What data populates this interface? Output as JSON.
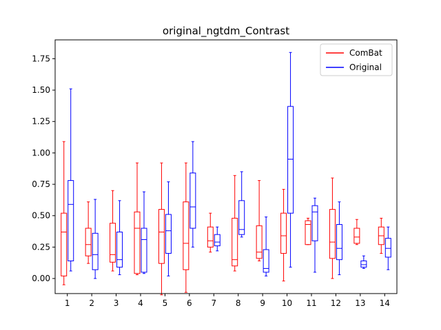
{
  "chart_data": {
    "type": "boxplot",
    "title": "original_ngtdm_Contrast",
    "xlabel": "",
    "ylabel": "",
    "categories": [
      "1",
      "2",
      "3",
      "4",
      "5",
      "6",
      "7",
      "8",
      "9",
      "10",
      "11",
      "12",
      "13",
      "14"
    ],
    "yticks": [
      "0.00",
      "0.25",
      "0.50",
      "0.75",
      "1.00",
      "1.25",
      "1.50",
      "1.75"
    ],
    "ylim": [
      -0.12,
      1.9
    ],
    "grid": false,
    "legend": {
      "placement": "top-right"
    },
    "series": [
      {
        "name": "ComBat",
        "color": "#ff0000",
        "boxes": [
          {
            "whislo": -0.05,
            "q1": 0.02,
            "med": 0.37,
            "q3": 0.52,
            "whishi": 1.09
          },
          {
            "whislo": 0.12,
            "q1": 0.18,
            "med": 0.27,
            "q3": 0.4,
            "whishi": 0.61
          },
          {
            "whislo": 0.06,
            "q1": 0.13,
            "med": 0.19,
            "q3": 0.44,
            "whishi": 0.7
          },
          {
            "whislo": 0.03,
            "q1": 0.04,
            "med": 0.4,
            "q3": 0.53,
            "whishi": 0.92
          },
          {
            "whislo": -0.13,
            "q1": 0.12,
            "med": 0.37,
            "q3": 0.55,
            "whishi": 0.92
          },
          {
            "whislo": -0.11,
            "q1": 0.07,
            "med": 0.28,
            "q3": 0.61,
            "whishi": 0.92
          },
          {
            "whislo": 0.21,
            "q1": 0.25,
            "med": 0.3,
            "q3": 0.41,
            "whishi": 0.52
          },
          {
            "whislo": 0.06,
            "q1": 0.1,
            "med": 0.15,
            "q3": 0.48,
            "whishi": 0.82
          },
          {
            "whislo": 0.14,
            "q1": 0.16,
            "med": 0.21,
            "q3": 0.42,
            "whishi": 0.78
          },
          {
            "whislo": -0.02,
            "q1": 0.2,
            "med": 0.34,
            "q3": 0.52,
            "whishi": 0.71
          },
          {
            "whislo": 0.27,
            "q1": 0.27,
            "med": 0.43,
            "q3": 0.46,
            "whishi": 0.48
          },
          {
            "whislo": 0.0,
            "q1": 0.16,
            "med": 0.29,
            "q3": 0.55,
            "whishi": 0.8
          },
          {
            "whislo": 0.27,
            "q1": 0.28,
            "med": 0.33,
            "q3": 0.4,
            "whishi": 0.47
          },
          {
            "whislo": 0.2,
            "q1": 0.27,
            "med": 0.34,
            "q3": 0.41,
            "whishi": 0.48
          }
        ]
      },
      {
        "name": "Original",
        "color": "#0000ff",
        "boxes": [
          {
            "whislo": 0.06,
            "q1": 0.14,
            "med": 0.59,
            "q3": 0.78,
            "whishi": 1.51
          },
          {
            "whislo": 0.0,
            "q1": 0.07,
            "med": 0.19,
            "q3": 0.36,
            "whishi": 0.63
          },
          {
            "whislo": 0.03,
            "q1": 0.09,
            "med": 0.15,
            "q3": 0.37,
            "whishi": 0.62
          },
          {
            "whislo": 0.04,
            "q1": 0.05,
            "med": 0.31,
            "q3": 0.4,
            "whishi": 0.69
          },
          {
            "whislo": 0.02,
            "q1": 0.2,
            "med": 0.38,
            "q3": 0.51,
            "whishi": 0.77
          },
          {
            "whislo": 0.25,
            "q1": 0.4,
            "med": 0.57,
            "q3": 0.84,
            "whishi": 1.09
          },
          {
            "whislo": 0.22,
            "q1": 0.26,
            "med": 0.29,
            "q3": 0.35,
            "whishi": 0.41
          },
          {
            "whislo": 0.33,
            "q1": 0.35,
            "med": 0.39,
            "q3": 0.62,
            "whishi": 0.85
          },
          {
            "whislo": 0.02,
            "q1": 0.05,
            "med": 0.08,
            "q3": 0.23,
            "whishi": 0.49
          },
          {
            "whislo": 0.09,
            "q1": 0.52,
            "med": 0.95,
            "q3": 1.37,
            "whishi": 1.8
          },
          {
            "whislo": 0.05,
            "q1": 0.3,
            "med": 0.53,
            "q3": 0.58,
            "whishi": 0.64
          },
          {
            "whislo": 0.03,
            "q1": 0.15,
            "med": 0.24,
            "q3": 0.43,
            "whishi": 0.61
          },
          {
            "whislo": 0.08,
            "q1": 0.09,
            "med": 0.11,
            "q3": 0.14,
            "whishi": 0.18
          },
          {
            "whislo": 0.07,
            "q1": 0.17,
            "med": 0.24,
            "q3": 0.32,
            "whishi": 0.41
          }
        ]
      }
    ]
  }
}
